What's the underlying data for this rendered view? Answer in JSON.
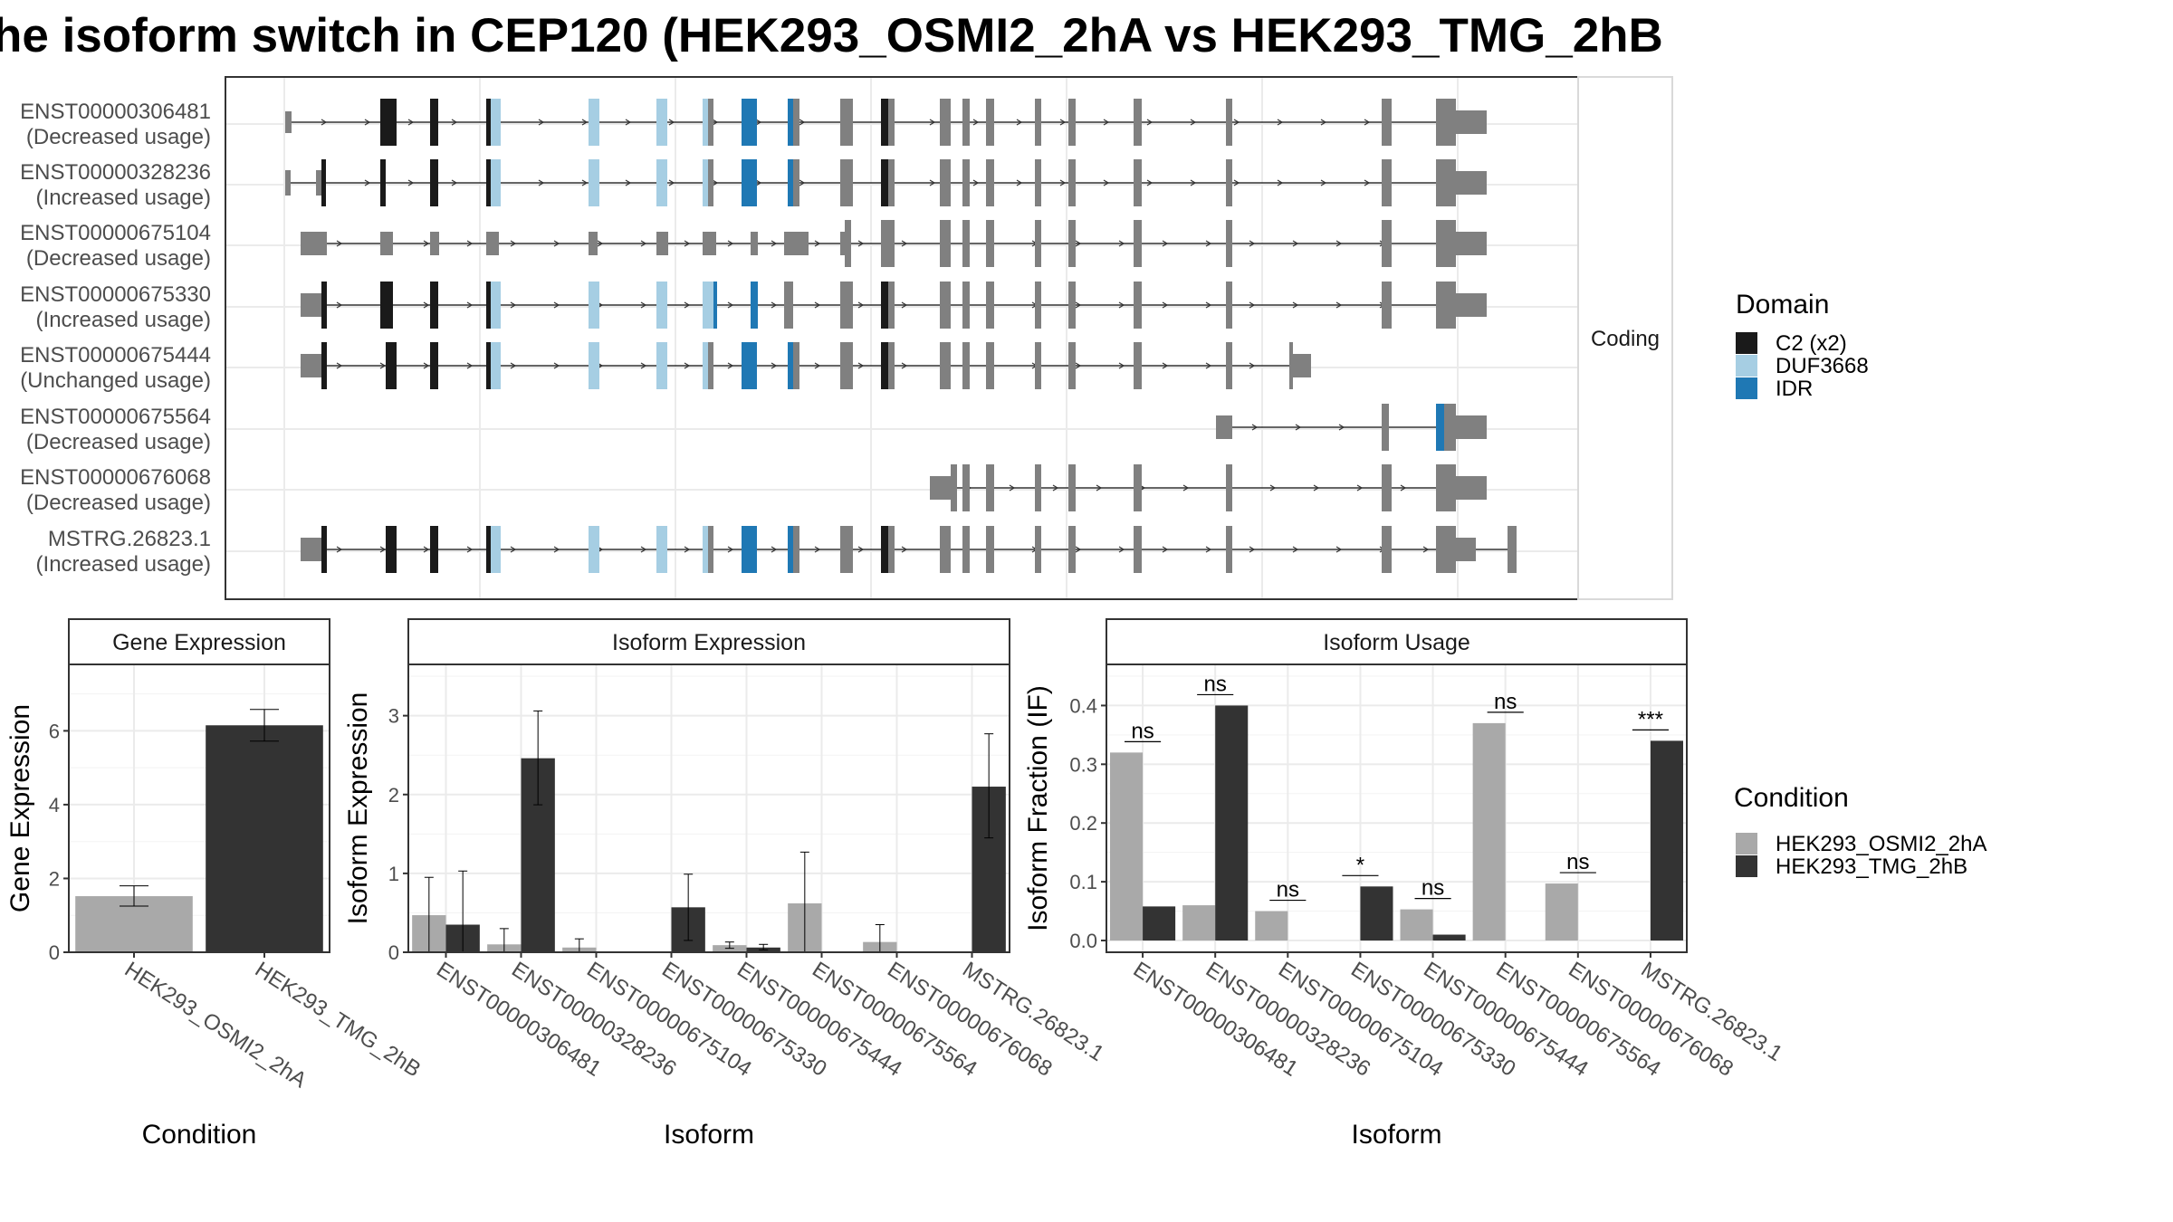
{
  "title": "he isoform switch in CEP120 (HEK293_OSMI2_2hA vs HEK293_TMG_2hB",
  "colors": {
    "background": "#ffffff",
    "exon_default": "#808080",
    "c2": "#1a1a1a",
    "duf3668": "#a6cee3",
    "idr": "#1f78b4",
    "cond_a": "#a9a9a9",
    "cond_b": "#333333"
  },
  "transcript_panel": {
    "strip_label": "Coding",
    "transcripts": [
      {
        "id": "ENST00000306481",
        "usage": "(Decreased usage)"
      },
      {
        "id": "ENST00000328236",
        "usage": "(Increased usage)"
      },
      {
        "id": "ENST00000675104",
        "usage": "(Decreased usage)"
      },
      {
        "id": "ENST00000675330",
        "usage": "(Increased usage)"
      },
      {
        "id": "ENST00000675444",
        "usage": "(Unchanged usage)"
      },
      {
        "id": "ENST00000675564",
        "usage": "(Decreased usage)"
      },
      {
        "id": "ENST00000676068",
        "usage": "(Decreased usage)"
      },
      {
        "id": "MSTRG.26823.1",
        "usage": "(Increased usage)"
      }
    ]
  },
  "domain_legend": {
    "title": "Domain",
    "items": [
      {
        "label": "C2 (x2)",
        "color": "#1a1a1a"
      },
      {
        "label": "DUF3668",
        "color": "#a6cee3"
      },
      {
        "label": "IDR",
        "color": "#1f78b4"
      }
    ]
  },
  "condition_legend": {
    "title": "Condition",
    "items": [
      {
        "label": "HEK293_OSMI2_2hA",
        "color": "#a9a9a9"
      },
      {
        "label": "HEK293_TMG_2hB",
        "color": "#333333"
      }
    ]
  },
  "chart_data": [
    {
      "type": "bar",
      "title": "Gene Expression",
      "xlabel": "Condition",
      "ylabel": "Gene Expression",
      "categories": [
        "HEK293_OSMI2_2hA",
        "HEK293_TMG_2hB"
      ],
      "values": [
        1.52,
        6.15
      ],
      "error_low": [
        1.25,
        5.72
      ],
      "error_high": [
        1.8,
        6.58
      ],
      "ylim": [
        0,
        7.8
      ],
      "yticks": [
        0,
        2,
        4,
        6
      ],
      "grid": true
    },
    {
      "type": "bar",
      "title": "Isoform Expression",
      "xlabel": "Isoform",
      "ylabel": "Isoform Expression",
      "categories": [
        "ENST00000306481",
        "ENST00000328236",
        "ENST00000675104",
        "ENST00000675330",
        "ENST00000675444",
        "ENST00000675564",
        "ENST00000676068",
        "MSTRG.26823.1"
      ],
      "ylim": [
        0,
        3.65
      ],
      "yticks": [
        0,
        1,
        2,
        3
      ],
      "grid": true,
      "series": [
        {
          "name": "HEK293_OSMI2_2hA",
          "values": [
            0.47,
            0.1,
            0.06,
            0.0,
            0.09,
            0.62,
            0.13,
            0.0
          ],
          "error_low": [
            0.0,
            0.0,
            0.0,
            0.0,
            0.05,
            0.0,
            0.0,
            0.0
          ],
          "error_high": [
            0.95,
            0.3,
            0.17,
            0.0,
            0.13,
            1.27,
            0.35,
            0.0
          ]
        },
        {
          "name": "HEK293_TMG_2hB",
          "values": [
            0.35,
            2.46,
            0.0,
            0.57,
            0.06,
            0.0,
            0.0,
            2.1
          ],
          "error_low": [
            0.0,
            1.87,
            0.0,
            0.15,
            0.03,
            0.0,
            0.0,
            1.45
          ],
          "error_high": [
            1.03,
            3.06,
            0.0,
            0.99,
            0.1,
            0.0,
            0.0,
            2.77
          ]
        }
      ]
    },
    {
      "type": "bar",
      "title": "Isoform Usage",
      "xlabel": "Isoform",
      "ylabel": "Isoform Fraction (IF)",
      "categories": [
        "ENST00000306481",
        "ENST00000328236",
        "ENST00000675104",
        "ENST00000675330",
        "ENST00000675444",
        "ENST00000675564",
        "ENST00000676068",
        "MSTRG.26823.1"
      ],
      "ylim": [
        -0.02,
        0.47
      ],
      "yticks": [
        0.0,
        0.1,
        0.2,
        0.3,
        0.4
      ],
      "grid": true,
      "series": [
        {
          "name": "HEK293_OSMI2_2hA",
          "values": [
            0.32,
            0.06,
            0.05,
            0.0,
            0.053,
            0.37,
            0.097,
            0.0
          ]
        },
        {
          "name": "HEK293_TMG_2hB",
          "values": [
            0.058,
            0.4,
            0.0,
            0.092,
            0.01,
            0.0,
            0.0,
            0.34
          ]
        }
      ],
      "significance": [
        "ns",
        "ns",
        "ns",
        "*",
        "ns",
        "ns",
        "ns",
        "***"
      ]
    }
  ]
}
